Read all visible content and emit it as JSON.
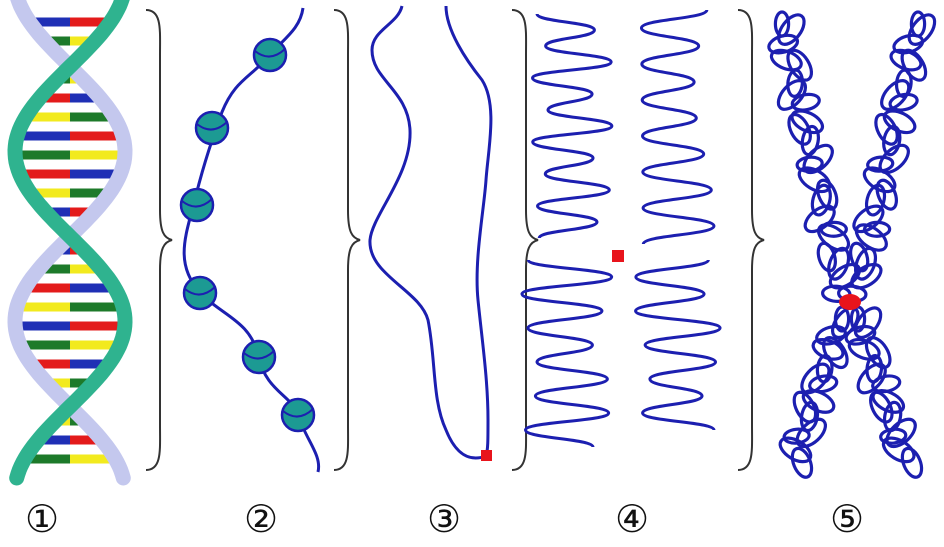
{
  "figure": {
    "stages": [
      {
        "label": "①",
        "name": "dna-double-helix"
      },
      {
        "label": "②",
        "name": "nucleosome-fiber"
      },
      {
        "label": "③",
        "name": "chromatin-fiber"
      },
      {
        "label": "④",
        "name": "folded-chromatin"
      },
      {
        "label": "⑤",
        "name": "condensed-chromosome"
      }
    ],
    "colors": {
      "backbone_green": "#2fb38f",
      "backbone_lavender": "#c4c8ee",
      "strand_blue": "#1c1fb0",
      "nucleosome_teal": "#1c9a93",
      "centromere_red": "#e8141c",
      "brace_gray": "#333333",
      "base_red": "#e31b1b",
      "base_yellow": "#f2ea1e",
      "base_blue": "#1f2fb5",
      "base_green": "#1d7a2a"
    }
  }
}
